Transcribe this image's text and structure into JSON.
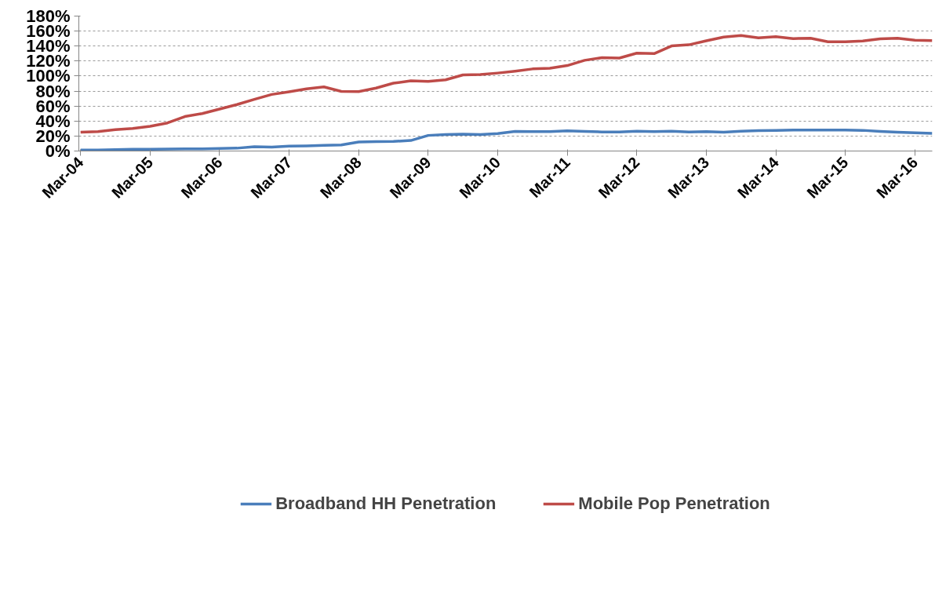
{
  "chart_data": {
    "type": "line",
    "categories": [
      "Mar-04",
      null,
      null,
      null,
      "Mar-05",
      null,
      null,
      null,
      "Mar-06",
      null,
      null,
      null,
      "Mar-07",
      null,
      null,
      null,
      "Mar-08",
      null,
      null,
      null,
      "Mar-09",
      null,
      null,
      null,
      "Mar-10",
      null,
      null,
      null,
      "Mar-11",
      null,
      null,
      null,
      "Mar-12",
      null,
      null,
      null,
      "Mar-13",
      null,
      null,
      null,
      "Mar-14",
      null,
      null,
      null,
      "Mar-15",
      null,
      null,
      null,
      "Mar-16",
      null
    ],
    "series": [
      {
        "name": "Broadband HH Penetration",
        "color": "#4a7ebb",
        "values": [
          1.3,
          1.3,
          1.8,
          2.3,
          2.3,
          2.5,
          2.8,
          3,
          3.3,
          3.8,
          5.8,
          5.3,
          6.6,
          6.9,
          7.5,
          8.2,
          12,
          12.6,
          12.8,
          14,
          20.8,
          22,
          22.5,
          22,
          23.2,
          26.2,
          26,
          26,
          26.9,
          26.2,
          25.5,
          25.3,
          26.4,
          26,
          26.3,
          25.3,
          25.8,
          25,
          26.3,
          27.2,
          27.4,
          27.9,
          28.1,
          28.1,
          27.9,
          27.6,
          26.2,
          25,
          24.3,
          23.6
        ]
      },
      {
        "name": "Mobile Pop Penetration",
        "color": "#be4b48",
        "values": [
          25,
          26,
          28.4,
          30,
          33,
          37.5,
          46,
          50,
          56,
          62,
          69,
          75.5,
          79,
          83,
          85.5,
          79.6,
          79.3,
          84,
          90.5,
          93.6,
          93,
          95,
          101.5,
          102,
          104,
          106.5,
          109.5,
          110.5,
          114,
          121,
          124.5,
          124,
          130.5,
          130,
          140.2,
          141.7,
          147,
          152,
          154,
          151,
          152.5,
          150,
          150.5,
          145.8,
          145.8,
          146.7,
          149.6,
          150.4,
          147.8,
          147.2
        ]
      }
    ],
    "ylim": [
      0,
      180
    ],
    "yticks": [
      {
        "value": 0,
        "label": "0%"
      },
      {
        "value": 20,
        "label": "20%"
      },
      {
        "value": 40,
        "label": "40%"
      },
      {
        "value": 60,
        "label": "60%"
      },
      {
        "value": 80,
        "label": "80%"
      },
      {
        "value": 100,
        "label": "100%"
      },
      {
        "value": 120,
        "label": "120%"
      },
      {
        "value": 140,
        "label": "140%"
      },
      {
        "value": 160,
        "label": "160%"
      },
      {
        "value": 180,
        "label": "180%"
      }
    ],
    "grid": "y",
    "legend": "bottom",
    "marker": "none",
    "line_style": "solid"
  }
}
